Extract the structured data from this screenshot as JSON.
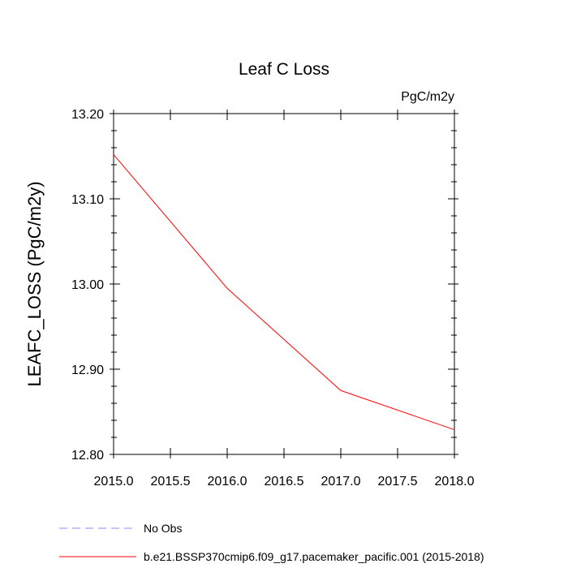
{
  "chart_data": {
    "type": "line",
    "title": "Leaf C Loss",
    "units_label": "PgC/m2y",
    "ylabel": "LEAFC_LOSS  (PgC/m2y)",
    "xlabel": "",
    "xlim": [
      2015.0,
      2018.0
    ],
    "ylim": [
      12.8,
      13.2
    ],
    "x_ticks": [
      2015.0,
      2015.5,
      2016.0,
      2016.5,
      2017.0,
      2017.5,
      2018.0
    ],
    "x_tick_labels": [
      "2015.0",
      "2015.5",
      "2016.0",
      "2016.5",
      "2017.0",
      "2017.5",
      "2018.0"
    ],
    "y_ticks": [
      12.8,
      12.9,
      13.0,
      13.1,
      13.2
    ],
    "y_tick_labels": [
      "12.80",
      "12.90",
      "13.00",
      "13.10",
      "13.20"
    ],
    "grid": false,
    "legend_position": "bottom",
    "series": [
      {
        "name": "b.e21.BSSP370cmip6.f09_g17.pacemaker_pacific.001 (2015-2018)",
        "color": "#ff0000",
        "dash": "solid",
        "x": [
          2015.0,
          2016.0,
          2017.0,
          2018.0
        ],
        "y": [
          13.152,
          12.995,
          12.875,
          12.829
        ]
      }
    ],
    "legend": [
      {
        "label": "No Obs",
        "color": "#8888ff",
        "dash": "dashed"
      },
      {
        "label": "b.e21.BSSP370cmip6.f09_g17.pacemaker_pacific.001 (2015-2018)",
        "color": "#ff0000",
        "dash": "solid"
      }
    ]
  }
}
